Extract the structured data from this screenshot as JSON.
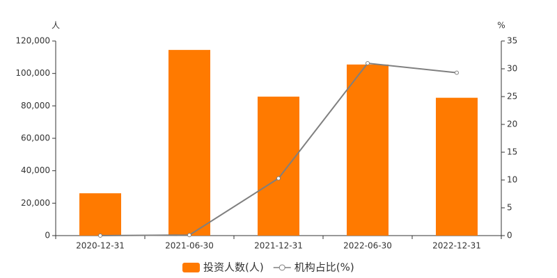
{
  "chart_data": {
    "type": "bar",
    "categories": [
      "2020-12-31",
      "2021-06-30",
      "2021-12-31",
      "2022-06-30",
      "2022-12-31"
    ],
    "ylabel": "人",
    "y2label": "%",
    "series": [
      {
        "name": "投资人数(人)",
        "type": "bar",
        "color": "#ff7a00",
        "values": [
          26100,
          114500,
          85700,
          105500,
          85000
        ]
      },
      {
        "name": "机构占比(%)",
        "type": "line",
        "axis": "y2",
        "color": "#7f7f7f",
        "values": [
          0,
          0.1,
          10.3,
          31,
          29.3
        ]
      }
    ],
    "ylim": [
      0,
      120000
    ],
    "yticks": [
      0,
      {
        "value": 20000,
        "label": "20,000"
      },
      {
        "value": 40000,
        "label": "40,000"
      },
      {
        "value": 60000,
        "label": "60,000"
      },
      {
        "value": 80000,
        "label": "80,000"
      },
      {
        "value": 100000,
        "label": "100,000"
      },
      {
        "value": 120000,
        "label": "120,000"
      }
    ],
    "y2lim": [
      0,
      35
    ],
    "y2ticks": [
      0,
      5,
      10,
      15,
      20,
      25,
      30,
      35
    ],
    "grid": false,
    "legend": "bottom"
  }
}
